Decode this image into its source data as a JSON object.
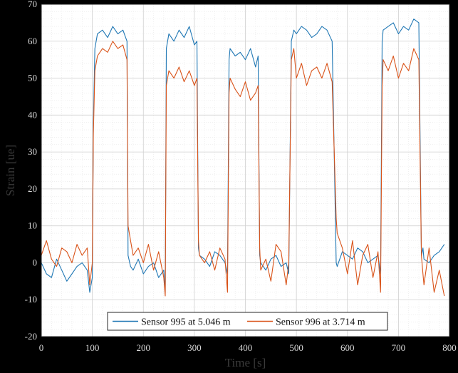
{
  "chart_data": {
    "type": "line",
    "xlabel": "Time [s]",
    "ylabel": "Strain [ue]",
    "xlim": [
      0,
      800
    ],
    "ylim": [
      -20,
      70
    ],
    "xticks": [
      0,
      100,
      200,
      300,
      400,
      500,
      600,
      700,
      800
    ],
    "yticks": [
      -20,
      -10,
      0,
      10,
      20,
      30,
      40,
      50,
      60,
      70
    ],
    "grid": true,
    "minor_grid": true,
    "legend_position": "bottom-center",
    "series": [
      {
        "name": "Sensor 995 at 5.046 m",
        "color": "#1f77b4",
        "x": [
          0,
          10,
          20,
          30,
          40,
          50,
          60,
          70,
          80,
          90,
          95,
          100,
          102,
          105,
          110,
          120,
          130,
          140,
          150,
          160,
          168,
          170,
          175,
          180,
          190,
          200,
          210,
          220,
          230,
          240,
          243,
          245,
          250,
          260,
          270,
          280,
          290,
          300,
          305,
          308,
          310,
          320,
          330,
          340,
          350,
          360,
          365,
          368,
          370,
          380,
          390,
          400,
          410,
          420,
          425,
          428,
          430,
          440,
          450,
          460,
          470,
          480,
          485,
          490,
          495,
          500,
          510,
          520,
          530,
          540,
          550,
          560,
          570,
          578,
          580,
          590,
          600,
          610,
          620,
          630,
          640,
          650,
          660,
          665,
          668,
          670,
          680,
          690,
          700,
          710,
          720,
          730,
          740,
          745,
          748,
          750,
          760,
          770,
          780,
          790
        ],
        "y": [
          0,
          -3,
          -4,
          1,
          -2,
          -5,
          -3,
          -1,
          0,
          -2,
          -8,
          -4,
          38,
          58,
          62,
          63,
          61,
          64,
          62,
          63,
          60,
          2,
          -1,
          -2,
          1,
          -3,
          -1,
          0,
          -4,
          -2,
          -8,
          58,
          62,
          60,
          63,
          61,
          64,
          59,
          60,
          4,
          2,
          1,
          -1,
          3,
          2,
          0,
          -3,
          55,
          58,
          56,
          57,
          55,
          58,
          53,
          56,
          2,
          0,
          -2,
          1,
          2,
          -1,
          0,
          -3,
          60,
          63,
          62,
          64,
          63,
          61,
          62,
          64,
          63,
          60,
          0,
          -1,
          3,
          2,
          1,
          4,
          3,
          0,
          1,
          2,
          -3,
          60,
          63,
          64,
          65,
          62,
          64,
          63,
          66,
          65,
          2,
          4,
          1,
          0,
          2,
          3,
          5
        ]
      },
      {
        "name": "Sensor 996 at 3.714 m",
        "color": "#d95319",
        "x": [
          0,
          10,
          20,
          30,
          40,
          50,
          60,
          70,
          80,
          90,
          95,
          100,
          102,
          105,
          110,
          120,
          130,
          140,
          150,
          160,
          168,
          170,
          175,
          180,
          190,
          200,
          210,
          220,
          230,
          240,
          243,
          245,
          250,
          260,
          270,
          280,
          290,
          300,
          305,
          308,
          310,
          320,
          330,
          340,
          350,
          360,
          365,
          368,
          370,
          380,
          390,
          400,
          410,
          420,
          425,
          428,
          430,
          440,
          450,
          460,
          470,
          480,
          485,
          490,
          495,
          500,
          510,
          520,
          530,
          540,
          550,
          560,
          570,
          578,
          580,
          590,
          600,
          610,
          620,
          630,
          640,
          650,
          660,
          665,
          668,
          670,
          680,
          690,
          700,
          710,
          720,
          730,
          740,
          745,
          748,
          750,
          760,
          770,
          780,
          790
        ],
        "y": [
          2,
          6,
          1,
          -1,
          4,
          3,
          0,
          5,
          2,
          4,
          -6,
          0,
          35,
          52,
          56,
          58,
          57,
          60,
          58,
          59,
          55,
          10,
          6,
          2,
          4,
          0,
          5,
          -2,
          3,
          -4,
          -9,
          48,
          52,
          50,
          53,
          49,
          52,
          48,
          50,
          6,
          2,
          0,
          3,
          -2,
          4,
          1,
          -8,
          46,
          50,
          47,
          45,
          49,
          44,
          46,
          48,
          4,
          -2,
          1,
          -5,
          5,
          3,
          -6,
          0,
          55,
          58,
          50,
          54,
          48,
          52,
          53,
          50,
          54,
          49,
          12,
          8,
          4,
          -3,
          6,
          -6,
          2,
          5,
          -4,
          3,
          -8,
          48,
          55,
          52,
          56,
          50,
          54,
          52,
          58,
          55,
          2,
          -3,
          -6,
          4,
          -8,
          -2,
          -9
        ]
      }
    ]
  }
}
